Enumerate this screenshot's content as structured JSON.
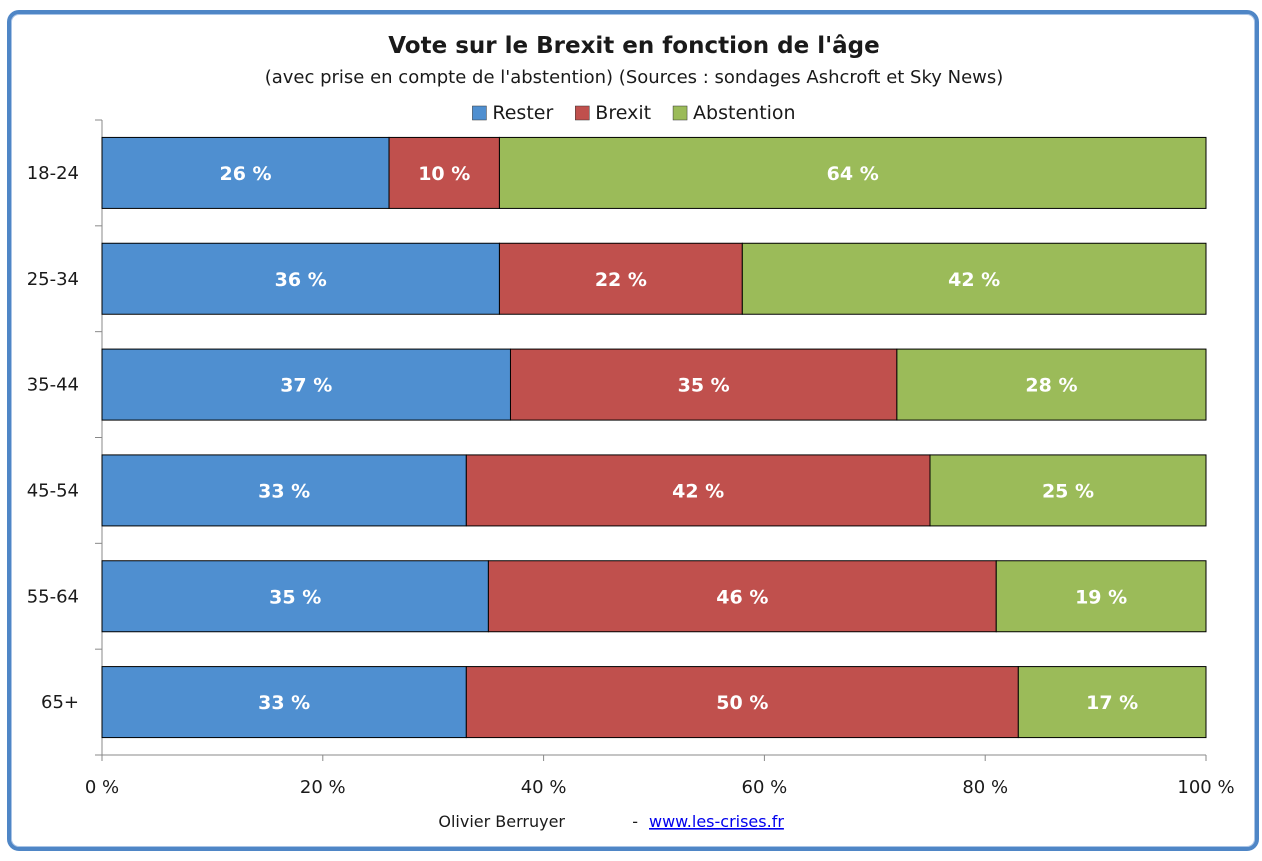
{
  "chart_data": {
    "type": "bar",
    "orientation": "horizontal",
    "stacked": true,
    "title": "Vote sur le Brexit en fonction de l'âge",
    "subtitle": "(avec prise en compte de l'abstention) (Sources : sondages Ashcroft et Sky News)",
    "categories": [
      "18-24",
      "25-34",
      "35-44",
      "45-54",
      "55-64",
      "65+"
    ],
    "series": [
      {
        "name": "Rester",
        "color": "#4f8fd0",
        "values": [
          26,
          36,
          37,
          33,
          35,
          33
        ]
      },
      {
        "name": "Brexit",
        "color": "#c0504d",
        "values": [
          10,
          22,
          35,
          42,
          46,
          50
        ]
      },
      {
        "name": "Abstention",
        "color": "#9bbb59",
        "values": [
          64,
          42,
          28,
          25,
          19,
          17
        ]
      }
    ],
    "value_suffix": " %",
    "xlim": [
      0,
      100
    ],
    "x_ticks": [
      0,
      20,
      40,
      60,
      80,
      100
    ],
    "x_tick_labels": [
      "0 %",
      "20 %",
      "40 %",
      "60 %",
      "80 %",
      "100 %"
    ],
    "legend_position": "top",
    "grid": false
  },
  "footer": {
    "author": "Olivier Berruyer",
    "separator": "-",
    "link": "www.les-crises.fr"
  },
  "colors": {
    "frame_border": "#4f86c6",
    "bar_outline": "#000000"
  }
}
